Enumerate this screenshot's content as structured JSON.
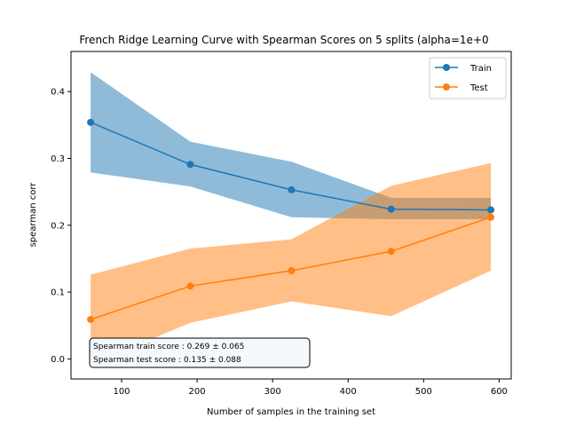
{
  "chart_data": {
    "type": "line",
    "title": "French Ridge Learning Curve with Spearman Scores on 5 splits (alpha=1e+0",
    "xlabel": "Number of samples in the training set",
    "ylabel": "spearman corr",
    "xlim": [
      33,
      616
    ],
    "ylim": [
      -0.03,
      0.46
    ],
    "xticks": [
      100,
      200,
      300,
      400,
      500,
      600
    ],
    "xtick_labels": [
      "100",
      "200",
      "300",
      "400",
      "500",
      "600"
    ],
    "yticks": [
      0.0,
      0.1,
      0.2,
      0.3,
      0.4
    ],
    "ytick_labels": [
      "0.0",
      "0.1",
      "0.2",
      "0.3",
      "0.4"
    ],
    "grid": false,
    "legend_position": "top-right",
    "x": [
      59,
      191,
      325,
      457,
      589
    ],
    "series": [
      {
        "name": "Train",
        "color": "#1f77b4",
        "values": [
          0.354,
          0.291,
          0.253,
          0.224,
          0.223
        ],
        "band_upper": [
          0.429,
          0.325,
          0.295,
          0.241,
          0.241
        ],
        "band_lower": [
          0.279,
          0.258,
          0.212,
          0.209,
          0.209
        ]
      },
      {
        "name": "Test",
        "color": "#ff7f0e",
        "values": [
          0.059,
          0.109,
          0.132,
          0.161,
          0.212
        ],
        "band_upper": [
          0.126,
          0.165,
          0.179,
          0.259,
          0.293
        ],
        "band_lower": [
          -0.008,
          0.054,
          0.086,
          0.064,
          0.132
        ]
      }
    ],
    "annotation": [
      "Spearman train score :  0.269 ± 0.065",
      "Spearman test score  :  0.135 ± 0.088"
    ]
  }
}
